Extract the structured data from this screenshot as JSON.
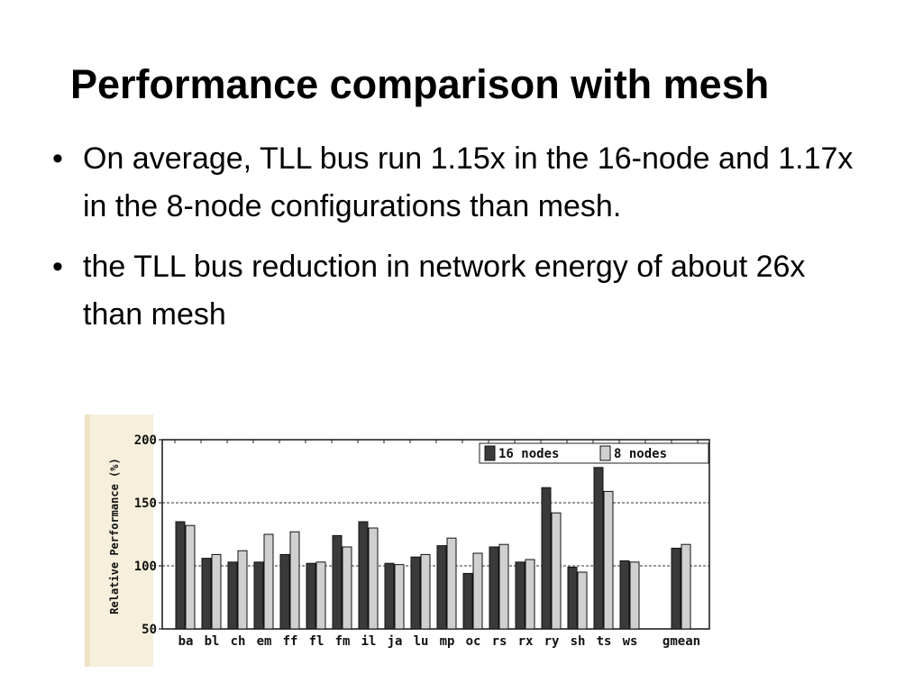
{
  "slide": {
    "title": "Performance comparison with mesh",
    "bullets": [
      "On average, TLL bus run 1.15x in the 16-node and 1.17x in the 8-node configurations than mesh.",
      "the TLL bus reduction in network energy of about 26x than mesh"
    ],
    "bullet_glyph": "•"
  },
  "chart_data": {
    "type": "bar",
    "ylabel": "Relative Performance (%)",
    "xlabel": "",
    "ylim": [
      50,
      200
    ],
    "yticks": [
      50,
      100,
      150,
      200
    ],
    "reference_lines": [
      100,
      150
    ],
    "legend_position": "top-right",
    "categories": [
      "ba",
      "bl",
      "ch",
      "em",
      "ff",
      "fl",
      "fm",
      "il",
      "ja",
      "lu",
      "mp",
      "oc",
      "rs",
      "rx",
      "ry",
      "sh",
      "ts",
      "ws",
      "gmean"
    ],
    "series": [
      {
        "name": "16 nodes",
        "color": "#3a3a3a",
        "values": [
          135,
          106,
          103,
          103,
          109,
          102,
          124,
          135,
          102,
          107,
          116,
          94,
          115,
          103,
          162,
          99,
          178,
          104,
          114
        ]
      },
      {
        "name": "8 nodes",
        "color": "#d0d0d0",
        "values": [
          132,
          109,
          112,
          125,
          127,
          103,
          115,
          130,
          101,
          109,
          122,
          110,
          117,
          105,
          142,
          95,
          159,
          103,
          117
        ]
      }
    ]
  }
}
